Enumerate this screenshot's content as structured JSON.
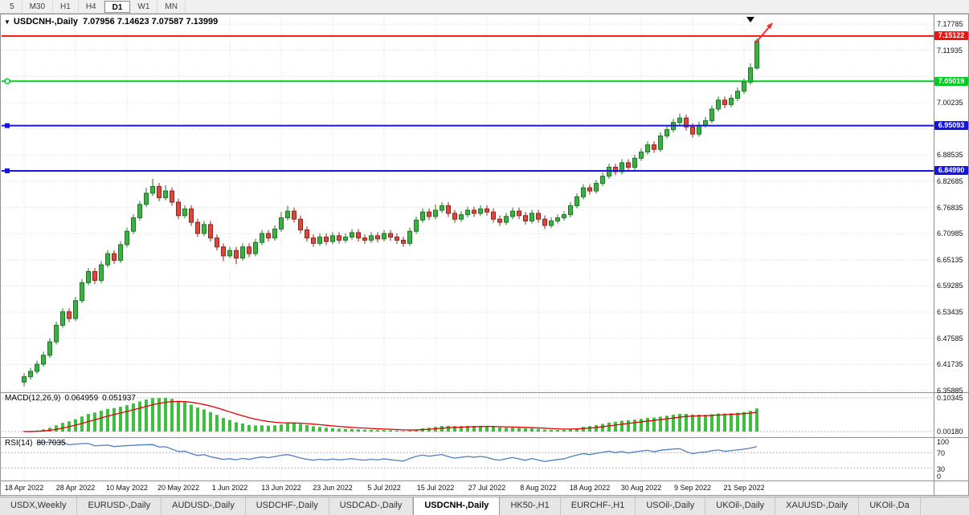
{
  "toolbar": {
    "timeframes": [
      {
        "label": "5"
      },
      {
        "label": "M30"
      },
      {
        "label": "H1"
      },
      {
        "label": "H4"
      },
      {
        "label": "D1",
        "active": true
      },
      {
        "label": "W1"
      },
      {
        "label": "MN"
      }
    ]
  },
  "chart": {
    "title": "USDCNH-,Daily",
    "ohlc": "7.07956 7.14623 7.07587 7.13999",
    "open": "7.07956",
    "high": "7.14623",
    "low": "7.07587",
    "close": "7.13999"
  },
  "price_axis": {
    "labels": [
      "7.17785",
      "7.11935",
      "7.06085",
      "7.00235",
      "6.94385",
      "6.88535",
      "6.82685",
      "6.76835",
      "6.70985",
      "6.65135",
      "6.59285",
      "6.53435",
      "6.47585",
      "6.41735",
      "6.35885"
    ]
  },
  "levels": [
    {
      "price": 7.15122,
      "label": "7.15122",
      "color": "#ee1414",
      "handle": "none"
    },
    {
      "price": 7.05019,
      "label": "7.05019",
      "color": "#00cc22",
      "handle": "circle"
    },
    {
      "price": 6.95093,
      "label": "6.95093",
      "color": "#1414dd",
      "handle": "square"
    },
    {
      "price": 6.8499,
      "label": "6.84990",
      "color": "#1414dd",
      "handle": "square"
    }
  ],
  "macd": {
    "label": "MACD(12,26,9)",
    "value_main": "0.064959",
    "value_signal": "0.051937",
    "axis_top": "0.10345",
    "axis_bottom": "0.00180",
    "fast": 12,
    "slow": 26,
    "signal_period": 9
  },
  "rsi": {
    "label": "RSI(14)",
    "value": "80.7035",
    "period": 14,
    "axis_labels": [
      100,
      70,
      30,
      0
    ],
    "level_lines": [
      70,
      30
    ]
  },
  "tabs": [
    {
      "label": "USDX,Weekly"
    },
    {
      "label": "EURUSD-,Daily"
    },
    {
      "label": "AUDUSD-,Daily"
    },
    {
      "label": "USDCHF-,Daily"
    },
    {
      "label": "USDCAD-,Daily"
    },
    {
      "label": "USDCNH-,Daily",
      "active": true
    },
    {
      "label": "HK50-,H1"
    },
    {
      "label": "EURCHF-,H1"
    },
    {
      "label": "USOil-,Daily"
    },
    {
      "label": "UKOil-,Daily"
    },
    {
      "label": "XAUUSD-,Daily"
    },
    {
      "label": "UKOil-,Da"
    }
  ],
  "colors": {
    "candle_up": "#3cb043",
    "candle_up_border": "#1a7a1f",
    "candle_down": "#d9493c",
    "candle_down_border": "#96211a",
    "macd_hist": "#3fbf3f",
    "macd_signal": "#e00000",
    "rsi_line": "#4a7fc1",
    "grid": "#d9d9d9",
    "border": "#909090",
    "arrow": "#f03030",
    "marker": "#000000"
  },
  "chart_data": {
    "type": "candlestick",
    "symbol": "USDCNH",
    "timeframe": "Daily",
    "y_min": 6.35885,
    "y_max": 7.17785,
    "x_ticks": [
      "18 Apr 2022",
      "28 Apr 2022",
      "10 May 2022",
      "20 May 2022",
      "1 Jun 2022",
      "13 Jun 2022",
      "23 Jun 2022",
      "5 Jul 2022",
      "15 Jul 2022",
      "27 Jul 2022",
      "8 Aug 2022",
      "18 Aug 2022",
      "30 Aug 2022",
      "9 Sep 2022",
      "21 Sep 2022"
    ],
    "tick_bar_indices": [
      0,
      8,
      16,
      24,
      32,
      40,
      48,
      56,
      64,
      72,
      80,
      88,
      96,
      104,
      112
    ],
    "candles": [
      [
        6.378,
        6.398,
        6.368,
        6.39
      ],
      [
        6.39,
        6.41,
        6.384,
        6.402
      ],
      [
        6.402,
        6.426,
        6.396,
        6.418
      ],
      [
        6.418,
        6.446,
        6.412,
        6.438
      ],
      [
        6.438,
        6.476,
        6.432,
        6.468
      ],
      [
        6.468,
        6.513,
        6.462,
        6.505
      ],
      [
        6.505,
        6.543,
        6.499,
        6.535
      ],
      [
        6.535,
        6.543,
        6.512,
        6.52
      ],
      [
        6.52,
        6.568,
        6.514,
        6.56
      ],
      [
        6.56,
        6.608,
        6.554,
        6.6
      ],
      [
        6.6,
        6.633,
        6.594,
        6.625
      ],
      [
        6.625,
        6.633,
        6.597,
        6.605
      ],
      [
        6.605,
        6.648,
        6.599,
        6.64
      ],
      [
        6.64,
        6.673,
        6.634,
        6.665
      ],
      [
        6.665,
        6.673,
        6.642,
        6.65
      ],
      [
        6.65,
        6.693,
        6.644,
        6.685
      ],
      [
        6.685,
        6.723,
        6.679,
        6.715
      ],
      [
        6.715,
        6.753,
        6.709,
        6.745
      ],
      [
        6.745,
        6.783,
        6.739,
        6.775
      ],
      [
        6.775,
        6.812,
        6.769,
        6.8
      ],
      [
        6.8,
        6.832,
        6.794,
        6.815
      ],
      [
        6.815,
        6.823,
        6.782,
        6.79
      ],
      [
        6.79,
        6.818,
        6.784,
        6.805
      ],
      [
        6.805,
        6.813,
        6.772,
        6.78
      ],
      [
        6.78,
        6.788,
        6.742,
        6.75
      ],
      [
        6.75,
        6.773,
        6.744,
        6.765
      ],
      [
        6.765,
        6.773,
        6.727,
        6.735
      ],
      [
        6.735,
        6.743,
        6.702,
        6.71
      ],
      [
        6.71,
        6.738,
        6.704,
        6.73
      ],
      [
        6.73,
        6.738,
        6.692,
        6.7
      ],
      [
        6.7,
        6.708,
        6.672,
        6.68
      ],
      [
        6.68,
        6.688,
        6.648,
        6.66
      ],
      [
        6.66,
        6.68,
        6.654,
        6.672
      ],
      [
        6.672,
        6.68,
        6.642,
        6.655
      ],
      [
        6.655,
        6.688,
        6.649,
        6.68
      ],
      [
        6.68,
        6.688,
        6.657,
        6.665
      ],
      [
        6.665,
        6.698,
        6.659,
        6.69
      ],
      [
        6.69,
        6.718,
        6.684,
        6.71
      ],
      [
        6.71,
        6.718,
        6.692,
        6.7
      ],
      [
        6.7,
        6.728,
        6.694,
        6.72
      ],
      [
        6.72,
        6.758,
        6.714,
        6.745
      ],
      [
        6.745,
        6.772,
        6.739,
        6.76
      ],
      [
        6.76,
        6.768,
        6.734,
        6.742
      ],
      [
        6.742,
        6.75,
        6.71,
        6.718
      ],
      [
        6.718,
        6.726,
        6.692,
        6.7
      ],
      [
        6.7,
        6.708,
        6.68,
        6.688
      ],
      [
        6.688,
        6.71,
        6.682,
        6.702
      ],
      [
        6.702,
        6.71,
        6.684,
        6.692
      ],
      [
        6.692,
        6.713,
        6.686,
        6.705
      ],
      [
        6.705,
        6.713,
        6.687,
        6.695
      ],
      [
        6.695,
        6.71,
        6.689,
        6.702
      ],
      [
        6.702,
        6.72,
        6.696,
        6.712
      ],
      [
        6.712,
        6.72,
        6.692,
        6.7
      ],
      [
        6.7,
        6.708,
        6.687,
        6.695
      ],
      [
        6.695,
        6.713,
        6.689,
        6.705
      ],
      [
        6.705,
        6.713,
        6.69,
        6.698
      ],
      [
        6.698,
        6.718,
        6.692,
        6.71
      ],
      [
        6.71,
        6.718,
        6.694,
        6.702
      ],
      [
        6.702,
        6.71,
        6.687,
        6.695
      ],
      [
        6.695,
        6.703,
        6.68,
        6.688
      ],
      [
        6.688,
        6.723,
        6.682,
        6.715
      ],
      [
        6.715,
        6.748,
        6.709,
        6.74
      ],
      [
        6.74,
        6.766,
        6.734,
        6.758
      ],
      [
        6.758,
        6.766,
        6.74,
        6.748
      ],
      [
        6.748,
        6.775,
        6.742,
        6.762
      ],
      [
        6.762,
        6.78,
        6.756,
        6.772
      ],
      [
        6.772,
        6.78,
        6.747,
        6.755
      ],
      [
        6.755,
        6.763,
        6.734,
        6.742
      ],
      [
        6.742,
        6.76,
        6.736,
        6.752
      ],
      [
        6.752,
        6.77,
        6.746,
        6.762
      ],
      [
        6.762,
        6.77,
        6.747,
        6.755
      ],
      [
        6.755,
        6.773,
        6.749,
        6.765
      ],
      [
        6.765,
        6.773,
        6.75,
        6.758
      ],
      [
        6.758,
        6.766,
        6.734,
        6.742
      ],
      [
        6.742,
        6.75,
        6.727,
        6.735
      ],
      [
        6.735,
        6.756,
        6.729,
        6.748
      ],
      [
        6.748,
        6.768,
        6.742,
        6.76
      ],
      [
        6.76,
        6.768,
        6.742,
        6.75
      ],
      [
        6.75,
        6.758,
        6.73,
        6.738
      ],
      [
        6.738,
        6.763,
        6.732,
        6.755
      ],
      [
        6.755,
        6.763,
        6.734,
        6.742
      ],
      [
        6.742,
        6.75,
        6.72,
        6.728
      ],
      [
        6.728,
        6.746,
        6.722,
        6.738
      ],
      [
        6.738,
        6.753,
        6.732,
        6.745
      ],
      [
        6.745,
        6.76,
        6.739,
        6.752
      ],
      [
        6.752,
        6.78,
        6.746,
        6.772
      ],
      [
        6.772,
        6.8,
        6.766,
        6.792
      ],
      [
        6.792,
        6.82,
        6.786,
        6.812
      ],
      [
        6.812,
        6.82,
        6.797,
        6.805
      ],
      [
        6.805,
        6.83,
        6.799,
        6.822
      ],
      [
        6.822,
        6.846,
        6.816,
        6.838
      ],
      [
        6.838,
        6.866,
        6.832,
        6.858
      ],
      [
        6.858,
        6.866,
        6.84,
        6.848
      ],
      [
        6.848,
        6.876,
        6.842,
        6.868
      ],
      [
        6.868,
        6.876,
        6.85,
        6.858
      ],
      [
        6.858,
        6.886,
        6.852,
        6.878
      ],
      [
        6.878,
        6.9,
        6.872,
        6.892
      ],
      [
        6.892,
        6.916,
        6.886,
        6.908
      ],
      [
        6.908,
        6.916,
        6.89,
        6.898
      ],
      [
        6.898,
        6.936,
        6.892,
        6.928
      ],
      [
        6.928,
        6.95,
        6.922,
        6.942
      ],
      [
        6.942,
        6.966,
        6.936,
        6.958
      ],
      [
        6.958,
        6.978,
        6.952,
        6.968
      ],
      [
        6.968,
        6.976,
        6.94,
        6.948
      ],
      [
        6.948,
        6.956,
        6.924,
        6.932
      ],
      [
        6.932,
        6.96,
        6.926,
        6.952
      ],
      [
        6.952,
        6.97,
        6.946,
        6.962
      ],
      [
        6.962,
        6.996,
        6.956,
        6.988
      ],
      [
        6.988,
        7.016,
        6.982,
        7.008
      ],
      [
        7.008,
        7.016,
        6.99,
        6.998
      ],
      [
        6.998,
        7.02,
        6.992,
        7.012
      ],
      [
        7.012,
        7.036,
        7.006,
        7.028
      ],
      [
        7.028,
        7.056,
        7.022,
        7.048
      ],
      [
        7.048,
        7.09,
        7.042,
        7.08
      ],
      [
        7.0796,
        7.1462,
        7.0759,
        7.14
      ]
    ]
  }
}
